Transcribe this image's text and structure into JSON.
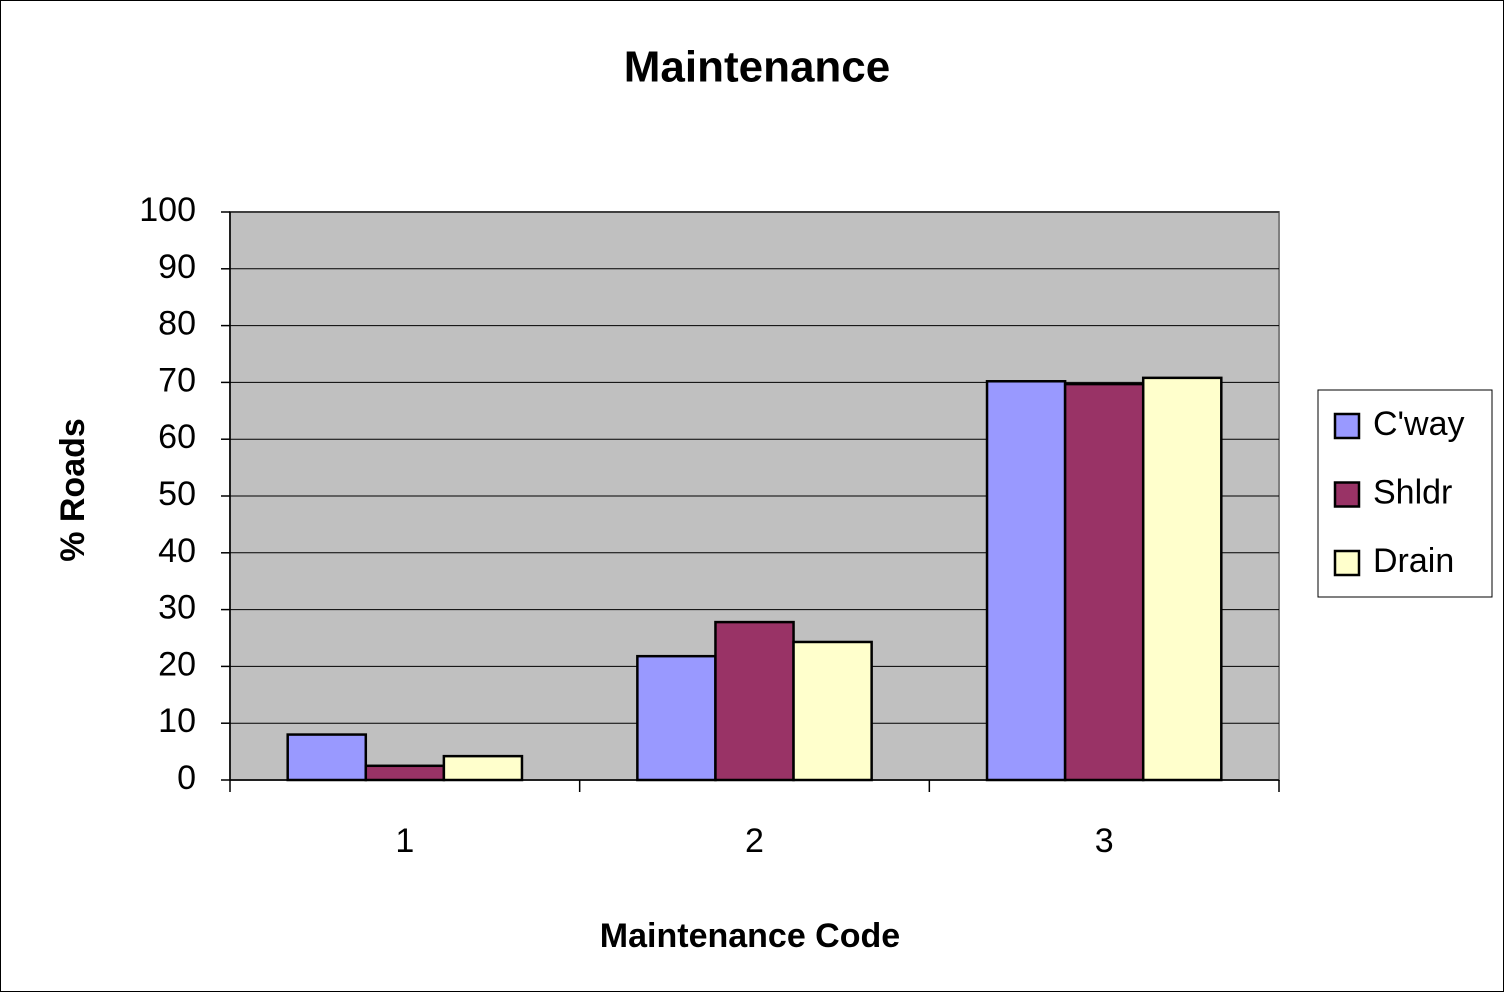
{
  "chart_data": {
    "type": "bar",
    "title": "Maintenance",
    "x_label": "Maintenance Code",
    "y_label": "% Roads",
    "categories": [
      "1",
      "2",
      "3"
    ],
    "series": [
      {
        "name": "C'way",
        "color": "#9999ff",
        "values": [
          8,
          21.8,
          70.2
        ]
      },
      {
        "name": "Shldr",
        "color": "#993366",
        "values": [
          2.5,
          27.8,
          69.7
        ]
      },
      {
        "name": "Drain",
        "color": "#ffffcc",
        "values": [
          4.2,
          24.3,
          70.8
        ]
      }
    ],
    "ylim": [
      0,
      100
    ],
    "yticks": [
      0,
      10,
      20,
      30,
      40,
      50,
      60,
      70,
      80,
      90,
      100
    ],
    "grid": true,
    "legend": "right",
    "plot_background": "#c0c0c0"
  }
}
